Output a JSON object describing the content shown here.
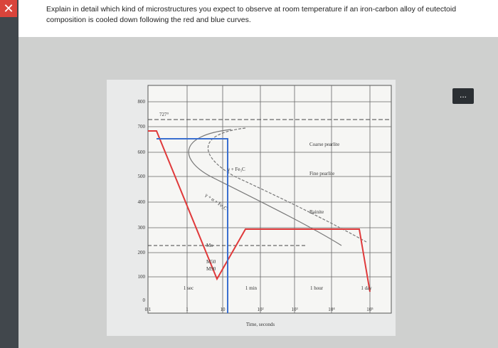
{
  "question": {
    "lines": [
      "Explain in detail which kind of microstructures you expect to observe at room temperature if an iron-carbon alloy of eutectoid",
      "composition is cooled down following the red and blue curves."
    ]
  },
  "diagram": {
    "temperature_labels": [
      "800",
      "700",
      "600",
      "500",
      "400",
      "300",
      "200",
      "100",
      "0"
    ],
    "time_labels": [
      "0.1",
      "1",
      "10",
      "10²",
      "10³",
      "10⁴",
      "10⁵"
    ],
    "period_labels": [
      "1 sec",
      "1 min",
      "1 hour",
      "1 day"
    ],
    "eutectoid": "727°",
    "regions": [
      "Coarse pearlite",
      "Fine pearlite",
      "Bainite",
      "γ + Fe₃C",
      "γ + α + Fe₃C"
    ],
    "martensite": [
      "Ms",
      "M50",
      "M90"
    ],
    "x_title": "Time, seconds"
  }
}
